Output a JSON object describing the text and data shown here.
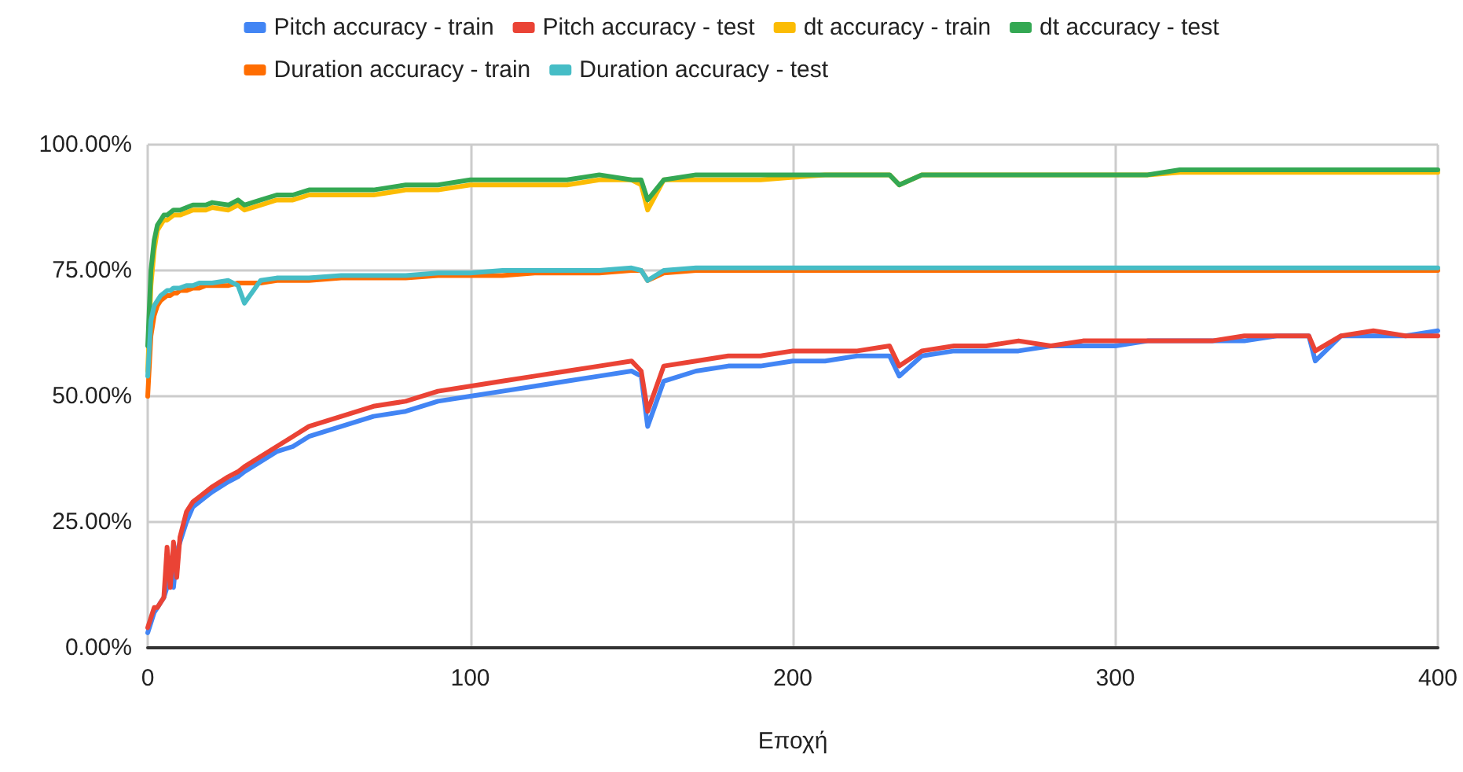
{
  "chart_data": {
    "type": "line",
    "xlabel": "Εποχή",
    "legend": "top",
    "grid": true,
    "marker": "none",
    "line_style": "solid",
    "x": [
      0,
      1,
      2,
      3,
      4,
      5,
      6,
      7,
      8,
      9,
      10,
      12,
      14,
      16,
      18,
      20,
      25,
      28,
      30,
      35,
      40,
      45,
      50,
      60,
      70,
      80,
      90,
      100,
      110,
      120,
      130,
      140,
      150,
      153,
      155,
      160,
      170,
      180,
      190,
      200,
      210,
      220,
      230,
      233,
      240,
      250,
      260,
      270,
      280,
      290,
      300,
      310,
      320,
      330,
      340,
      350,
      360,
      362,
      370,
      380,
      390,
      400
    ],
    "xlim": [
      0,
      400
    ],
    "xticks": [
      0,
      100,
      200,
      300,
      400
    ],
    "ylim": [
      0,
      100
    ],
    "yticks": [
      {
        "value": 0,
        "label": "0.00%"
      },
      {
        "value": 25,
        "label": "25.00%"
      },
      {
        "value": 50,
        "label": "50.00%"
      },
      {
        "value": 75,
        "label": "75.00%"
      },
      {
        "value": 100,
        "label": "100.00%"
      }
    ],
    "series": [
      {
        "name": "Pitch accuracy - train",
        "color": "#4285f4",
        "values": [
          3,
          5,
          7,
          8,
          9,
          10,
          12,
          15,
          12,
          19,
          21,
          25,
          28,
          29,
          30,
          31,
          33,
          34,
          35,
          37,
          39,
          40,
          42,
          44,
          46,
          47,
          49,
          50,
          51,
          52,
          53,
          54,
          55,
          54,
          44,
          53,
          55,
          56,
          56,
          57,
          57,
          58,
          58,
          54,
          58,
          59,
          59,
          59,
          60,
          60,
          60,
          61,
          61,
          61,
          61,
          62,
          62,
          57,
          62,
          62,
          62,
          63
        ]
      },
      {
        "name": "Pitch accuracy - test",
        "color": "#ea4335",
        "values": [
          4,
          6,
          8,
          8,
          9,
          10,
          20,
          12,
          21,
          14,
          22,
          27,
          29,
          30,
          31,
          32,
          34,
          35,
          36,
          38,
          40,
          42,
          44,
          46,
          48,
          49,
          51,
          52,
          53,
          54,
          55,
          56,
          57,
          55,
          47,
          56,
          57,
          58,
          58,
          59,
          59,
          59,
          60,
          56,
          59,
          60,
          60,
          61,
          60,
          61,
          61,
          61,
          61,
          61,
          62,
          62,
          62,
          59,
          62,
          63,
          62,
          62
        ]
      },
      {
        "name": "dt accuracy - train",
        "color": "#fbbc04",
        "values": [
          55,
          72,
          79,
          83,
          84,
          85,
          85,
          85.5,
          86,
          86,
          86,
          86.5,
          87,
          87,
          87,
          87.5,
          87,
          88,
          87,
          88,
          89,
          89,
          90,
          90,
          90,
          91,
          91,
          92,
          92,
          92,
          92,
          93,
          93,
          92,
          87,
          93,
          93,
          93,
          93,
          93.5,
          94,
          94,
          94,
          92,
          94,
          94,
          94,
          94,
          94,
          94,
          94,
          94,
          94.5,
          94.5,
          94.5,
          94.5,
          94.5,
          94.5,
          94.5,
          94.5,
          94.5,
          94.5
        ]
      },
      {
        "name": "dt accuracy - test",
        "color": "#34a853",
        "values": [
          60,
          75,
          81,
          84,
          85,
          86,
          86,
          86.5,
          87,
          87,
          87,
          87.5,
          88,
          88,
          88,
          88.5,
          88,
          89,
          88,
          89,
          90,
          90,
          91,
          91,
          91,
          92,
          92,
          93,
          93,
          93,
          93,
          94,
          93,
          93,
          89,
          93,
          94,
          94,
          94,
          94,
          94,
          94,
          94,
          92,
          94,
          94,
          94,
          94,
          94,
          94,
          94,
          94,
          95,
          95,
          95,
          95,
          95,
          95,
          95,
          95,
          95,
          95
        ]
      },
      {
        "name": "Duration accuracy - train",
        "color": "#ff6d01",
        "values": [
          50,
          62,
          66,
          68,
          69,
          69.5,
          70,
          70,
          70.5,
          70.5,
          71,
          71,
          71.5,
          71.5,
          72,
          72,
          72,
          72.5,
          72.5,
          72.5,
          73,
          73,
          73,
          73.5,
          73.5,
          73.5,
          74,
          74,
          74,
          74.5,
          74.5,
          74.5,
          75,
          75,
          73,
          74.5,
          75,
          75,
          75,
          75,
          75,
          75,
          75,
          75,
          75,
          75,
          75,
          75,
          75,
          75,
          75,
          75,
          75,
          75,
          75,
          75,
          75,
          75,
          75,
          75,
          75,
          75
        ]
      },
      {
        "name": "Duration accuracy - test",
        "color": "#46bdc6",
        "values": [
          54,
          65,
          68,
          69,
          70,
          70.5,
          71,
          71,
          71.5,
          71.5,
          71.5,
          72,
          72,
          72.5,
          72.5,
          72.5,
          73,
          72,
          68.5,
          73,
          73.5,
          73.5,
          73.5,
          74,
          74,
          74,
          74.5,
          74.5,
          75,
          75,
          75,
          75,
          75.5,
          75,
          73,
          75,
          75.5,
          75.5,
          75.5,
          75.5,
          75.5,
          75.5,
          75.5,
          75.5,
          75.5,
          75.5,
          75.5,
          75.5,
          75.5,
          75.5,
          75.5,
          75.5,
          75.5,
          75.5,
          75.5,
          75.5,
          75.5,
          75.5,
          75.5,
          75.5,
          75.5,
          75.5
        ]
      }
    ]
  }
}
